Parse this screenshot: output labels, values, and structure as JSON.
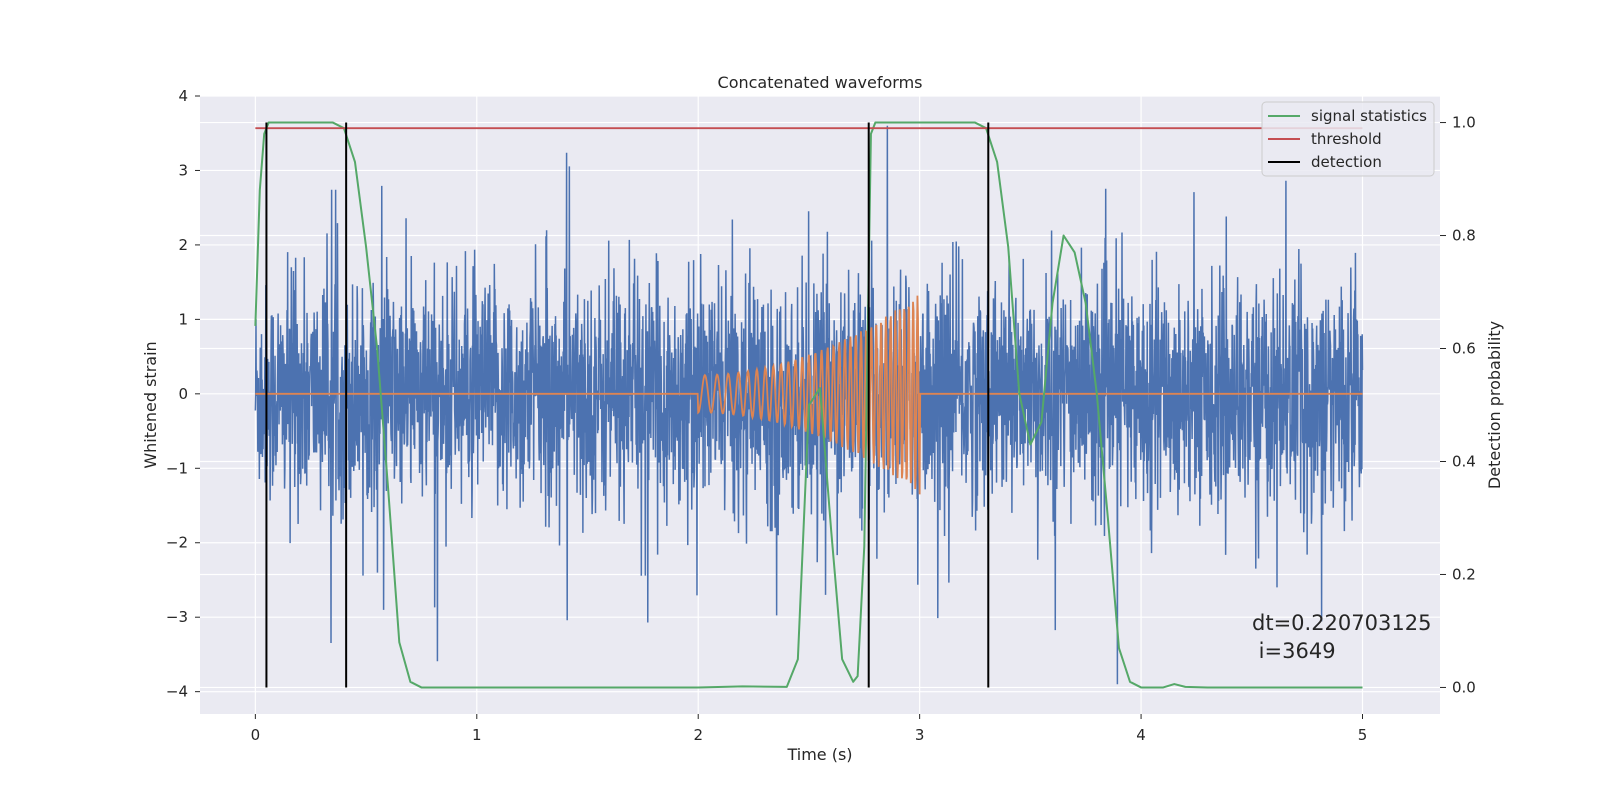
{
  "chart_data": {
    "type": "line",
    "title": "Concatenated waveforms",
    "xlabel": "Time (s)",
    "ylabel_left": "Whitened strain",
    "ylabel_right": "Detection probability",
    "xlim": [
      -0.25,
      5.35
    ],
    "ylim_left": [
      -4.3,
      4.0
    ],
    "ylim_right": [
      -0.047,
      1.047
    ],
    "x_ticks": [
      0,
      1,
      2,
      3,
      4,
      5
    ],
    "y_ticks_left": [
      -4,
      -3,
      -2,
      -1,
      0,
      1,
      2,
      3,
      4
    ],
    "y_ticks_right": [
      0.0,
      0.2,
      0.4,
      0.6,
      0.8,
      1.0
    ],
    "grid": true,
    "legend": {
      "position": "top-right",
      "entries": [
        {
          "label": "signal statistics",
          "color": "#55a868"
        },
        {
          "label": "threshold",
          "color": "#c44e52"
        },
        {
          "label": "detection",
          "color": "#000000"
        }
      ]
    },
    "series": [
      {
        "kind": "noisy-strain",
        "axis": "left",
        "color": "#4c72b0",
        "x_range": [
          0,
          5
        ],
        "typical_range": [
          -1.0,
          1.0
        ],
        "peak_range": [
          -3.9,
          3.6
        ]
      },
      {
        "kind": "injected-chirp",
        "axis": "left",
        "color": "#dd8452",
        "x_range": [
          0,
          5
        ],
        "chirp_start": 2.0,
        "chirp_end": 3.0,
        "amplitude_start": 0.25,
        "amplitude_end": 1.35
      },
      {
        "name": "signal statistics",
        "axis": "right",
        "color": "#55a868",
        "x": [
          0,
          0.02,
          0.04,
          0.06,
          0.1,
          0.2,
          0.35,
          0.4,
          0.45,
          0.5,
          0.55,
          0.6,
          0.65,
          0.7,
          0.75,
          1.0,
          2.0,
          2.2,
          2.4,
          2.45,
          2.5,
          2.55,
          2.6,
          2.65,
          2.7,
          2.72,
          2.75,
          2.78,
          2.8,
          2.85,
          3.0,
          3.25,
          3.3,
          3.35,
          3.4,
          3.45,
          3.5,
          3.55,
          3.6,
          3.65,
          3.7,
          3.75,
          3.8,
          3.85,
          3.9,
          3.95,
          4.0,
          4.1,
          4.15,
          4.2,
          4.3,
          5.0
        ],
        "values": [
          0.64,
          0.88,
          0.98,
          1.0,
          1.0,
          1.0,
          1.0,
          0.99,
          0.93,
          0.78,
          0.6,
          0.35,
          0.08,
          0.01,
          0.0,
          0.0,
          0.0,
          0.002,
          0.001,
          0.05,
          0.5,
          0.53,
          0.28,
          0.05,
          0.01,
          0.02,
          0.25,
          0.98,
          1.0,
          1.0,
          1.0,
          1.0,
          0.99,
          0.93,
          0.78,
          0.52,
          0.43,
          0.47,
          0.68,
          0.8,
          0.77,
          0.68,
          0.52,
          0.3,
          0.07,
          0.01,
          0.0,
          0.0,
          0.006,
          0.001,
          0.0,
          0.0
        ]
      },
      {
        "name": "threshold",
        "axis": "right",
        "color": "#c44e52",
        "x": [
          0,
          5
        ],
        "values": [
          0.99,
          0.99
        ]
      },
      {
        "name": "detection",
        "axis": "right",
        "color": "#000000",
        "type": "vlines",
        "x": [
          0.05,
          0.41,
          2.77,
          3.31
        ],
        "ymin": 0.0,
        "ymax": 1.0
      }
    ],
    "annotation": {
      "lines": [
        "dt=0.220703125",
        " i=3649"
      ],
      "x": 4.52,
      "y": -3.25
    }
  }
}
